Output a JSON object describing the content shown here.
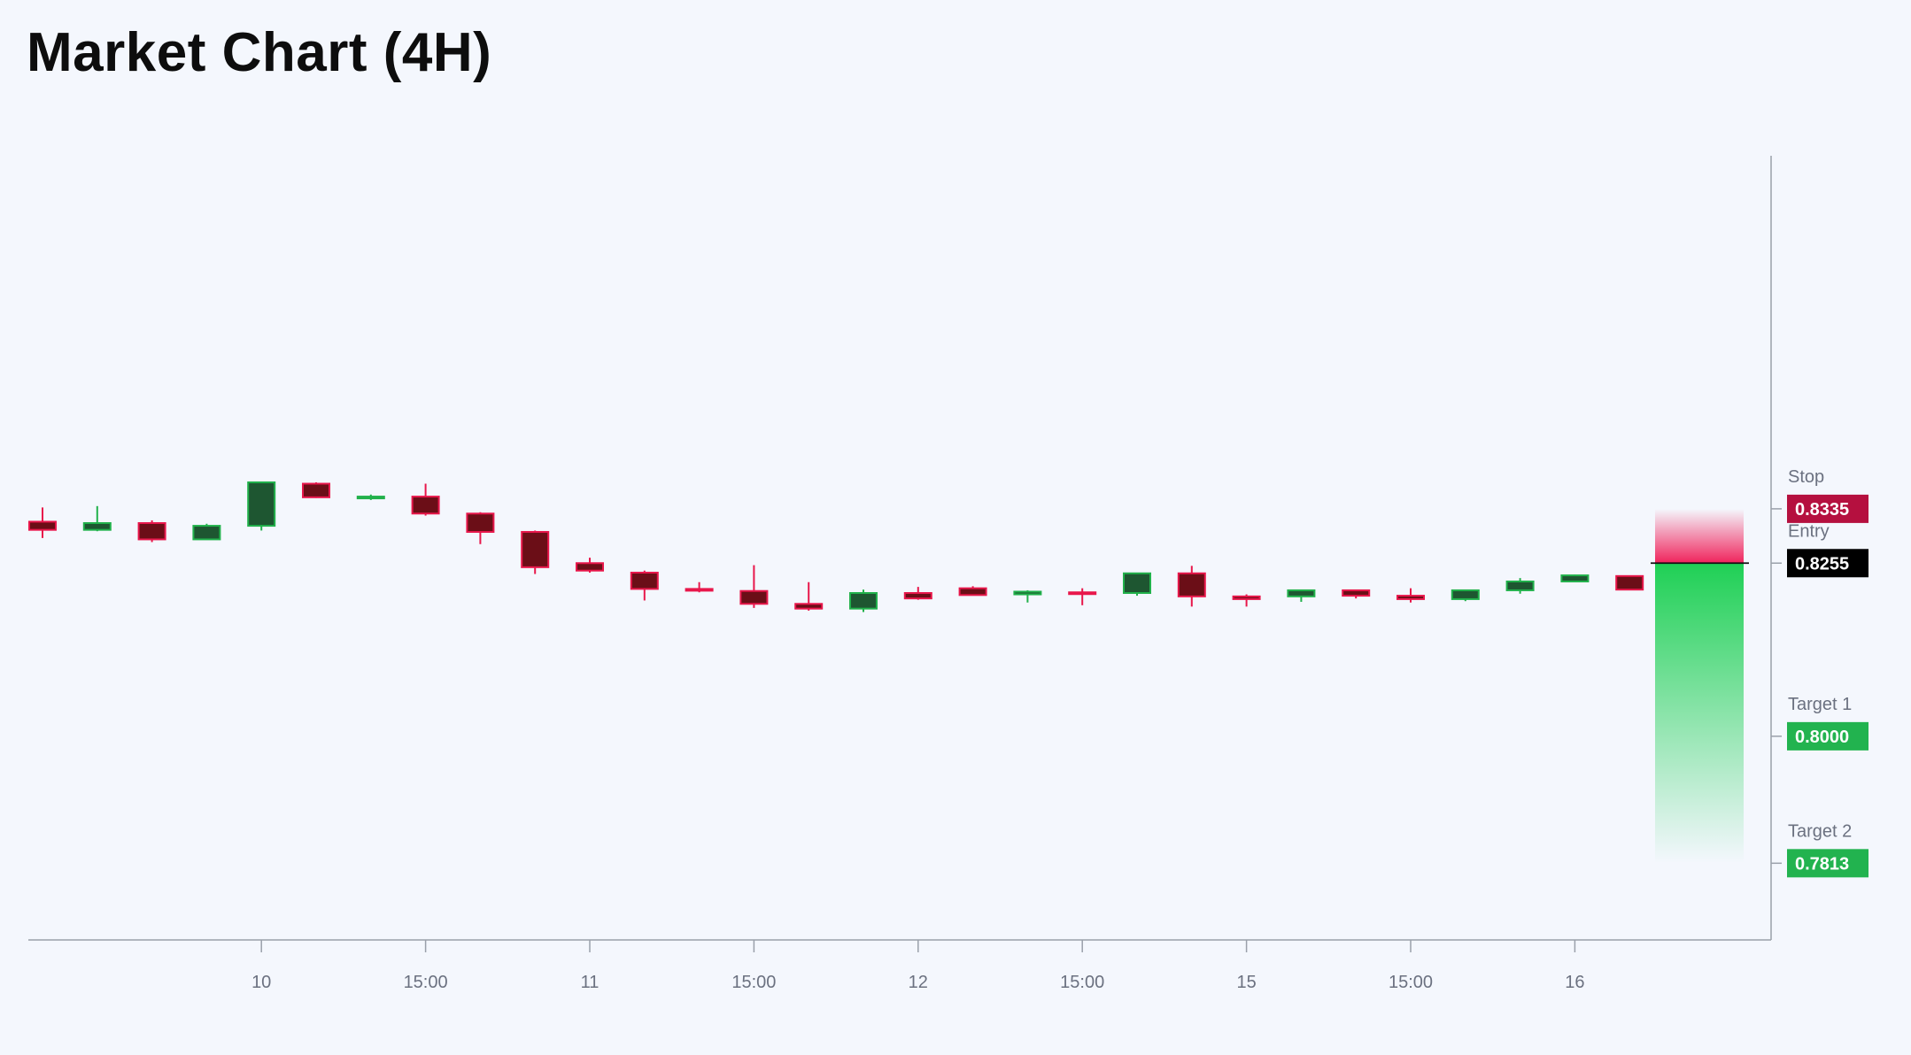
{
  "title": "Market Chart (4H)",
  "colors": {
    "background": "#f4f7fd",
    "bull_body": "#1e5631",
    "bull_border": "#21b14b",
    "bear_body": "#6b0e17",
    "bear_border": "#e8174b",
    "stop_badge": "#b5103f",
    "entry_badge": "#000000",
    "target_badge": "#22b34f",
    "axis": "#9aa0aa"
  },
  "chart_data": {
    "type": "candlestick",
    "title": "Market Chart (4H)",
    "x_ticks": [
      "10",
      "15:00",
      "11",
      "15:00",
      "12",
      "15:00",
      "15",
      "15:00",
      "16"
    ],
    "ylim": [
      0.77,
      0.8855
    ],
    "y_axis_side": "right",
    "grid": false,
    "candles": [
      {
        "o": 0.8316,
        "h": 0.8337,
        "l": 0.8292,
        "c": 0.8304
      },
      {
        "o": 0.8304,
        "h": 0.8339,
        "l": 0.8302,
        "c": 0.8314
      },
      {
        "o": 0.8314,
        "h": 0.8318,
        "l": 0.8286,
        "c": 0.829
      },
      {
        "o": 0.829,
        "h": 0.8313,
        "l": 0.829,
        "c": 0.831
      },
      {
        "o": 0.831,
        "h": 0.8375,
        "l": 0.8303,
        "c": 0.8374
      },
      {
        "o": 0.8372,
        "h": 0.8374,
        "l": 0.8351,
        "c": 0.8352
      },
      {
        "o": 0.8351,
        "h": 0.8356,
        "l": 0.8348,
        "c": 0.8353
      },
      {
        "o": 0.8353,
        "h": 0.8372,
        "l": 0.8325,
        "c": 0.8328
      },
      {
        "o": 0.8328,
        "h": 0.833,
        "l": 0.8283,
        "c": 0.8301
      },
      {
        "o": 0.8301,
        "h": 0.8303,
        "l": 0.8239,
        "c": 0.8249
      },
      {
        "o": 0.8255,
        "h": 0.8263,
        "l": 0.8241,
        "c": 0.8244
      },
      {
        "o": 0.8241,
        "h": 0.8244,
        "l": 0.82,
        "c": 0.8217
      },
      {
        "o": 0.8217,
        "h": 0.8227,
        "l": 0.8212,
        "c": 0.8215
      },
      {
        "o": 0.8214,
        "h": 0.8252,
        "l": 0.8189,
        "c": 0.8195
      },
      {
        "o": 0.8195,
        "h": 0.8227,
        "l": 0.8185,
        "c": 0.8188
      },
      {
        "o": 0.8188,
        "h": 0.8216,
        "l": 0.8183,
        "c": 0.8211
      },
      {
        "o": 0.8211,
        "h": 0.822,
        "l": 0.8201,
        "c": 0.8203
      },
      {
        "o": 0.8218,
        "h": 0.8221,
        "l": 0.8208,
        "c": 0.8208
      },
      {
        "o": 0.8209,
        "h": 0.8215,
        "l": 0.8197,
        "c": 0.8213
      },
      {
        "o": 0.8212,
        "h": 0.8218,
        "l": 0.8193,
        "c": 0.821
      },
      {
        "o": 0.8211,
        "h": 0.8241,
        "l": 0.8207,
        "c": 0.824
      },
      {
        "o": 0.824,
        "h": 0.8251,
        "l": 0.8191,
        "c": 0.8206
      },
      {
        "o": 0.8206,
        "h": 0.8209,
        "l": 0.8191,
        "c": 0.8202
      },
      {
        "o": 0.8206,
        "h": 0.8216,
        "l": 0.8198,
        "c": 0.8215
      },
      {
        "o": 0.8215,
        "h": 0.8216,
        "l": 0.8203,
        "c": 0.8207
      },
      {
        "o": 0.8207,
        "h": 0.8218,
        "l": 0.8197,
        "c": 0.8202
      },
      {
        "o": 0.8202,
        "h": 0.8215,
        "l": 0.8199,
        "c": 0.8215
      },
      {
        "o": 0.8215,
        "h": 0.8233,
        "l": 0.821,
        "c": 0.8228
      },
      {
        "o": 0.8228,
        "h": 0.8238,
        "l": 0.8228,
        "c": 0.8237
      },
      {
        "o": 0.8236,
        "h": 0.8237,
        "l": 0.8215,
        "c": 0.8216
      }
    ],
    "levels": [
      {
        "name": "Stop",
        "value": 0.8335,
        "label": "0.8335",
        "kind": "stop"
      },
      {
        "name": "Entry",
        "value": 0.8255,
        "label": "0.8255",
        "kind": "entry"
      },
      {
        "name": "Target 1",
        "value": 0.8,
        "label": "0.8000",
        "kind": "target"
      },
      {
        "name": "Target 2",
        "value": 0.7813,
        "label": "0.7813",
        "kind": "target"
      }
    ]
  }
}
